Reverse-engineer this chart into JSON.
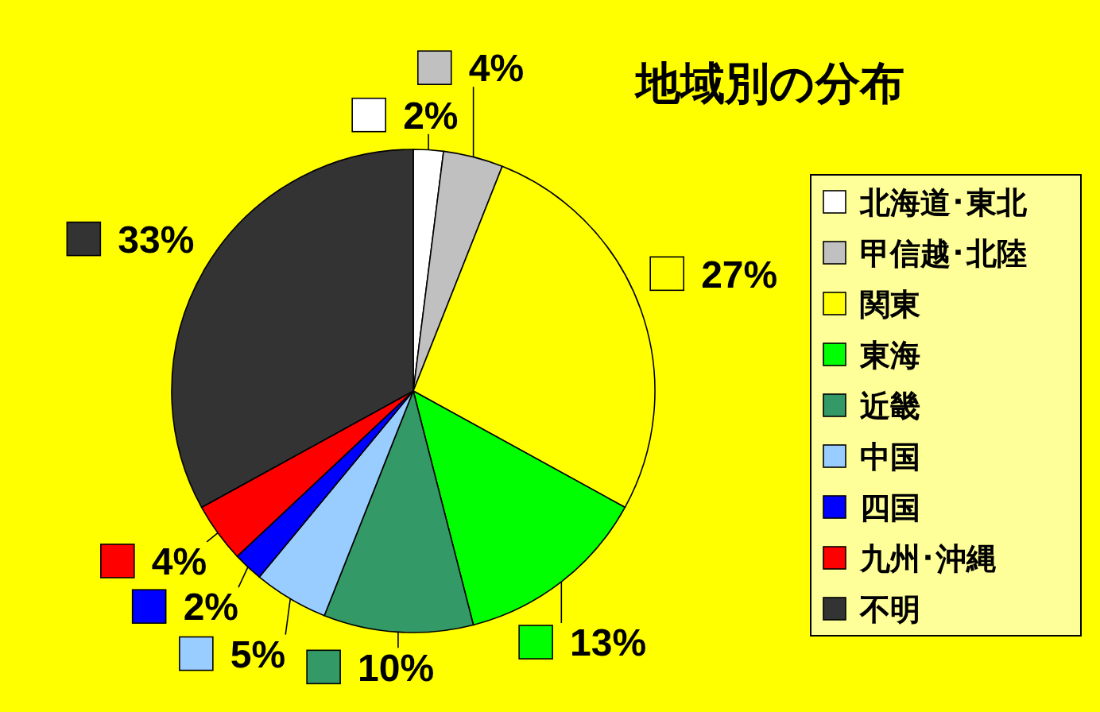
{
  "chart_data": {
    "type": "pie",
    "title": "地域別の分布",
    "categories": [
      "北海道･東北",
      "甲信越･北陸",
      "関東",
      "東海",
      "近畿",
      "中国",
      "四国",
      "九州･沖縄",
      "不明"
    ],
    "values": [
      2,
      4,
      27,
      13,
      10,
      5,
      2,
      4,
      33
    ],
    "colors": [
      "#ffffff",
      "#c0c0c0",
      "#ffff00",
      "#00ff00",
      "#339966",
      "#99ccff",
      "#0000ff",
      "#ff0000",
      "#333333"
    ],
    "value_labels": [
      "2%",
      "4%",
      "27%",
      "13%",
      "10%",
      "5%",
      "2%",
      "4%",
      "33%"
    ],
    "legend": "right"
  }
}
